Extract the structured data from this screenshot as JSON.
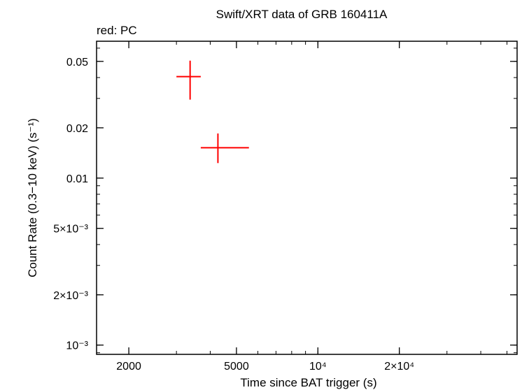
{
  "chart_data": {
    "type": "scatter",
    "title": "Swift/XRT data of GRB 160411A",
    "subtitle": "red: PC",
    "xlabel": "Time since BAT trigger (s)",
    "ylabel": "Count Rate (0.3−10 keV) (s⁻¹)",
    "xscale": "log",
    "yscale": "log",
    "xlim": [
      1520,
      54500
    ],
    "ylim": [
      0.00088,
      0.066
    ],
    "x_ticks": [
      {
        "value": 2000,
        "label": "2000"
      },
      {
        "value": 5000,
        "label": "5000"
      },
      {
        "value": 10000,
        "label": "10⁴"
      },
      {
        "value": 20000,
        "label": "2×10⁴"
      }
    ],
    "y_ticks": [
      {
        "value": 0.05,
        "label": "0.05"
      },
      {
        "value": 0.02,
        "label": "0.02"
      },
      {
        "value": 0.01,
        "label": "0.01"
      },
      {
        "value": 0.005,
        "label": "5×10⁻³"
      },
      {
        "value": 0.002,
        "label": "2×10⁻³"
      },
      {
        "value": 0.001,
        "label": "10⁻³"
      }
    ],
    "series": [
      {
        "color": "#ff0000",
        "points": [
          {
            "x": 3370,
            "xlo": 3000,
            "xhi": 3690,
            "y": 0.0405,
            "ylo": 0.0295,
            "yhi": 0.0505
          },
          {
            "x": 4270,
            "xlo": 3690,
            "xhi": 5560,
            "y": 0.0152,
            "ylo": 0.0123,
            "yhi": 0.0185
          }
        ]
      }
    ],
    "grid": false,
    "legend": "none"
  }
}
